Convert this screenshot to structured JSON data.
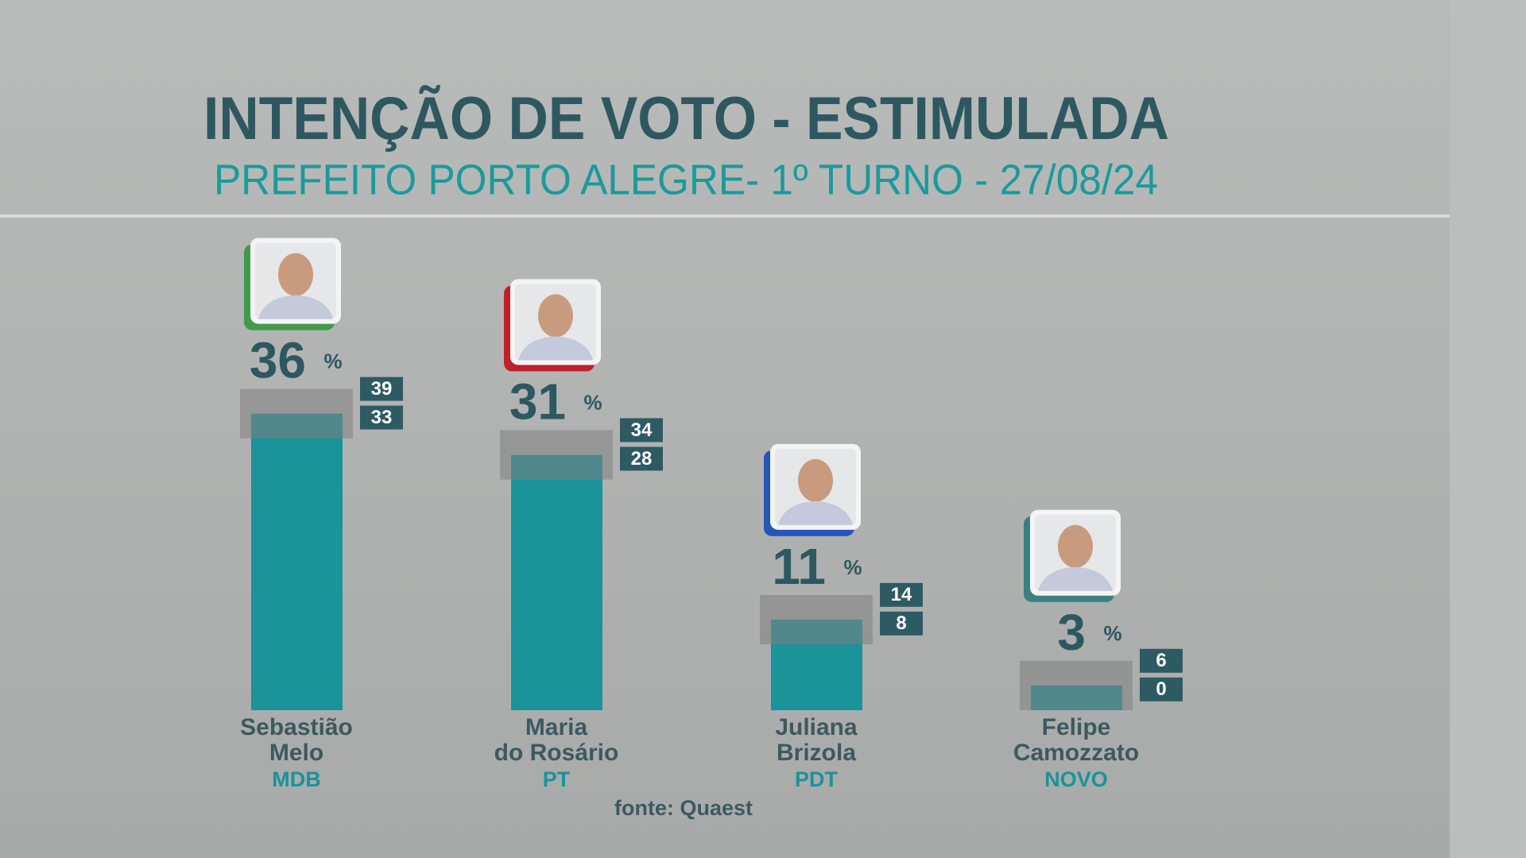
{
  "chart_data": {
    "type": "bar",
    "title": "INTENÇÃO DE VOTO - ESTIMULADA",
    "subtitle": "PREFEITO PORTO ALEGRE- 1º TURNO - 27/08/24",
    "categories": [
      "Sebastião\nMelo",
      "Maria\ndo Rosário",
      "Juliana\nBrizola",
      "Felipe\nCamozzato"
    ],
    "parties": [
      "MDB",
      "PT",
      "PDT",
      "NOVO"
    ],
    "values": [
      36,
      31,
      11,
      3
    ],
    "upper": [
      39,
      34,
      14,
      6
    ],
    "lower": [
      33,
      28,
      8,
      0
    ],
    "unit": "%",
    "color": "#1a9399",
    "source": "fonte: Quaest"
  }
}
